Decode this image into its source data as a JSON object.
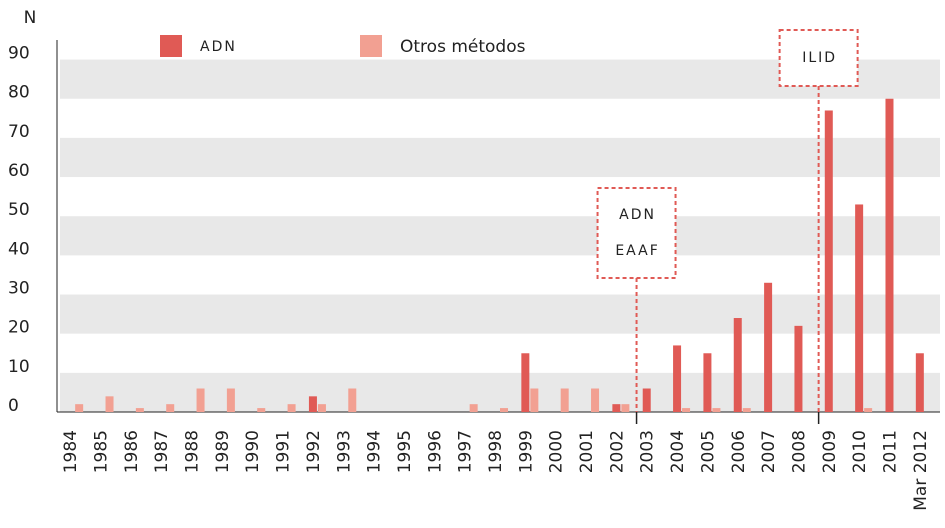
{
  "chart_data": {
    "type": "bar",
    "y_label": "N",
    "categories": [
      "1984",
      "1985",
      "1986",
      "1987",
      "1988",
      "1989",
      "1990",
      "1991",
      "1992",
      "1993",
      "1994",
      "1995",
      "1996",
      "1997",
      "1998",
      "1999",
      "2000",
      "2001",
      "2002",
      "2003",
      "2004",
      "2005",
      "2006",
      "2007",
      "2008",
      "2009",
      "2010",
      "2011",
      "Mar 2012"
    ],
    "series": [
      {
        "name": "ADN",
        "color": "#e05a55",
        "values": [
          0,
          0,
          0,
          0,
          0,
          0,
          0,
          0,
          4,
          0,
          0,
          0,
          0,
          0,
          0,
          15,
          0,
          0,
          2,
          6,
          17,
          15,
          24,
          33,
          22,
          77,
          53,
          80,
          15
        ]
      },
      {
        "name": "Otros métodos",
        "color": "#f2a092",
        "values": [
          2,
          4,
          1,
          2,
          6,
          6,
          1,
          2,
          2,
          6,
          0,
          0,
          0,
          2,
          1,
          6,
          6,
          6,
          2,
          0,
          1,
          1,
          1,
          0,
          0,
          0,
          1,
          0,
          0
        ]
      }
    ],
    "annotations": [
      {
        "lines": [
          "ADN",
          "EAAF"
        ]
      },
      {
        "lines": [
          "ILID"
        ]
      }
    ],
    "ylim": [
      0,
      95
    ],
    "yticks": [
      0,
      10,
      20,
      30,
      40,
      50,
      60,
      70,
      80,
      90
    ],
    "grid": "bands"
  }
}
